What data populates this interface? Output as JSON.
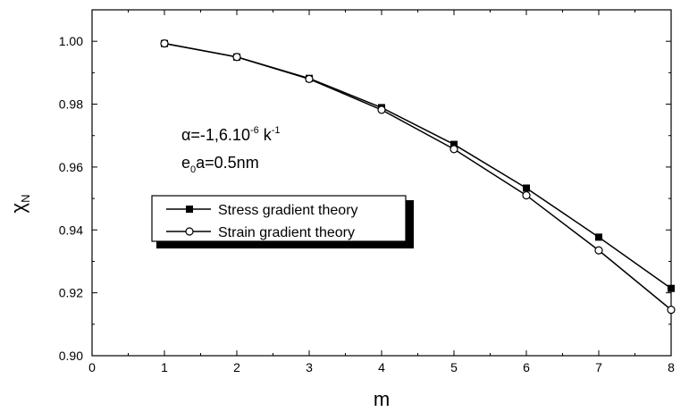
{
  "chart_data": {
    "type": "line",
    "xlabel": "m",
    "ylabel": "χ",
    "ylabel_sub": "N",
    "xlim": [
      0,
      8
    ],
    "ylim": [
      0.9,
      1.01
    ],
    "x_ticks": [
      "0",
      "1",
      "2",
      "3",
      "4",
      "5",
      "6",
      "7",
      "8"
    ],
    "y_ticks": [
      "0.90",
      "0.92",
      "0.94",
      "0.96",
      "0.98",
      "1.00"
    ],
    "x": [
      1,
      2,
      3,
      4,
      5,
      6,
      7,
      8
    ],
    "series": [
      {
        "name": "Stress gradient theory",
        "marker": "filled-square",
        "values": [
          0.9993,
          0.995,
          0.9882,
          0.9789,
          0.9672,
          0.9533,
          0.9377,
          0.9214
        ]
      },
      {
        "name": "Strain gradient theory",
        "marker": "open-circle",
        "values": [
          0.9993,
          0.995,
          0.988,
          0.9782,
          0.9657,
          0.951,
          0.9335,
          0.9146
        ]
      }
    ],
    "annotations": {
      "line1_prefix": "α=-1,6.10",
      "line1_exp1": "-6",
      "line1_mid": " k",
      "line1_exp2": "-1",
      "line2_e": "e",
      "line2_sub": "0",
      "line2_rest": "a=0.5nm"
    },
    "legend_placement": "center-left",
    "grid": false
  }
}
